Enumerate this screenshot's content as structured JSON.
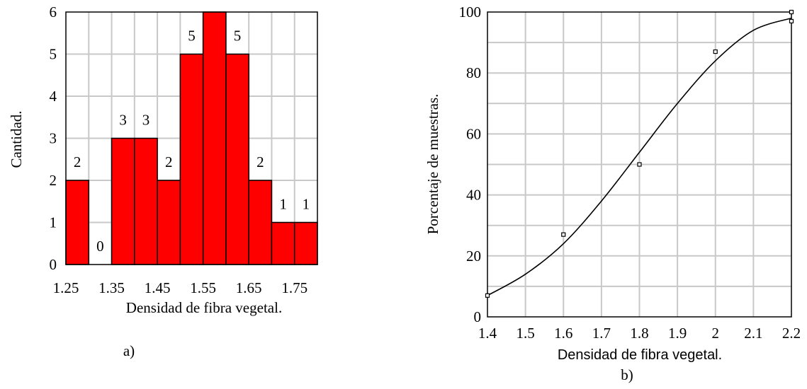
{
  "chart_data": [
    {
      "type": "bar",
      "categories": [
        "1.25",
        "1.30",
        "1.35",
        "1.40",
        "1.45",
        "1.50",
        "1.55",
        "1.60",
        "1.65",
        "1.70",
        "1.75"
      ],
      "values": [
        2,
        0,
        3,
        3,
        2,
        5,
        6,
        5,
        2,
        1,
        1
      ],
      "data_labels": [
        "2",
        "0",
        "3",
        "3",
        "2",
        "5",
        "",
        "5",
        "2",
        "1",
        "1"
      ],
      "xlabel": "Densidad de fibra vegetal.",
      "ylabel": "Cantidad.",
      "caption": "a)",
      "xticks": [
        "1.25",
        "1.35",
        "1.45",
        "1.55",
        "1.65",
        "1.75"
      ],
      "yticks": [
        "0",
        "1",
        "2",
        "3",
        "4",
        "5",
        "6"
      ],
      "ylim": [
        0,
        6
      ],
      "grid": true,
      "bar_color": "#ff0000"
    },
    {
      "type": "scatter",
      "points": [
        {
          "x": 1.4,
          "y": 7
        },
        {
          "x": 1.6,
          "y": 27
        },
        {
          "x": 1.8,
          "y": 50
        },
        {
          "x": 2.0,
          "y": 87
        },
        {
          "x": 2.2,
          "y": 100
        },
        {
          "x": 2.2,
          "y": 97
        }
      ],
      "fit_curve": [
        {
          "x": 1.4,
          "y": 7
        },
        {
          "x": 1.5,
          "y": 14
        },
        {
          "x": 1.6,
          "y": 24
        },
        {
          "x": 1.7,
          "y": 38
        },
        {
          "x": 1.8,
          "y": 54
        },
        {
          "x": 1.9,
          "y": 70
        },
        {
          "x": 2.0,
          "y": 84
        },
        {
          "x": 2.1,
          "y": 94
        },
        {
          "x": 2.2,
          "y": 98
        }
      ],
      "xlabel": "Densidad de fibra vegetal.",
      "ylabel": "Porcentaje de muestras.",
      "caption": "b)",
      "xticks": [
        "1.4",
        "1.5",
        "1.6",
        "1.7",
        "1.8",
        "1.9",
        "2",
        "2.1",
        "2.2"
      ],
      "yticks": [
        "0",
        "20",
        "40",
        "60",
        "80",
        "100"
      ],
      "xlim": [
        1.4,
        2.2
      ],
      "ylim": [
        0,
        100
      ],
      "grid": true
    }
  ]
}
